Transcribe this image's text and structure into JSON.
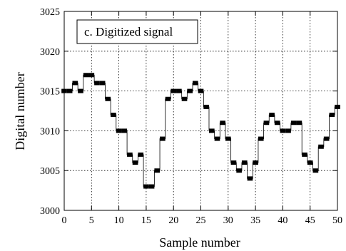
{
  "chart_data": {
    "type": "line",
    "title": "",
    "annotation": "c. Digitized signal",
    "xlabel": "Sample number",
    "ylabel": "Digital number",
    "xlim": [
      0,
      50
    ],
    "ylim": [
      3000,
      3025
    ],
    "xticks": [
      0,
      5,
      10,
      15,
      20,
      25,
      30,
      35,
      40,
      45,
      50
    ],
    "yticks": [
      3000,
      3005,
      3010,
      3015,
      3020,
      3025
    ],
    "grid": true,
    "legend": "top-left",
    "step": true,
    "series": [
      {
        "color": "#000000",
        "x": [
          0,
          1,
          2,
          3,
          4,
          5,
          6,
          7,
          8,
          9,
          10,
          11,
          12,
          13,
          14,
          15,
          16,
          17,
          18,
          19,
          20,
          21,
          22,
          23,
          24,
          25,
          26,
          27,
          28,
          29,
          30,
          31,
          32,
          33,
          34,
          35,
          36,
          37,
          38,
          39,
          40,
          41,
          42,
          43,
          44,
          45,
          46,
          47,
          48,
          49,
          50
        ],
        "values": [
          3015,
          3015,
          3016,
          3015,
          3017,
          3017,
          3016,
          3016,
          3014,
          3012,
          3010,
          3010,
          3007,
          3006,
          3007,
          3003,
          3003,
          3005,
          3009,
          3014,
          3015,
          3015,
          3014,
          3015,
          3016,
          3015,
          3013,
          3010,
          3009,
          3011,
          3009,
          3006,
          3005,
          3006,
          3004,
          3006,
          3009,
          3011,
          3012,
          3011,
          3010,
          3010,
          3011,
          3011,
          3007,
          3006,
          3005,
          3008,
          3009,
          3012,
          3013
        ]
      }
    ]
  }
}
